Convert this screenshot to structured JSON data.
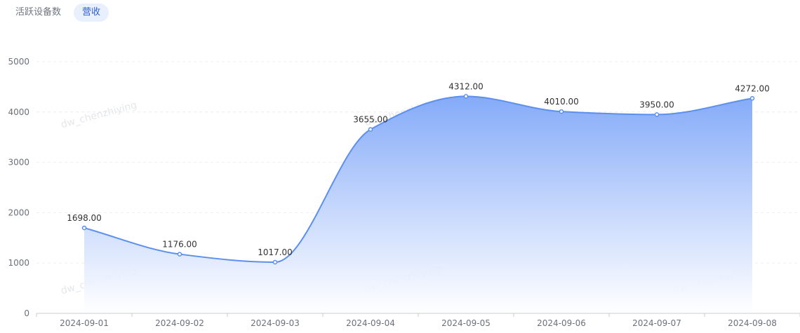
{
  "tabs": [
    {
      "label": "活跃设备数",
      "active": false
    },
    {
      "label": "营收",
      "active": true
    }
  ],
  "watermark": "dw_chenzhiying",
  "colors": {
    "line": "#5b8ff0",
    "area_top": "#7ea6f8",
    "area_bottom": "#ffffff",
    "grid": "#eceef2",
    "tab_active_bg": "#e8effd",
    "tab_active_text": "#2e5fd1"
  },
  "chart_data": {
    "type": "area",
    "x": [
      "2024-09-01",
      "2024-09-02",
      "2024-09-03",
      "2024-09-04",
      "2024-09-05",
      "2024-09-06",
      "2024-09-07",
      "2024-09-08"
    ],
    "values": [
      1698.0,
      1176.0,
      1017.0,
      3655.0,
      4312.0,
      4010.0,
      3950.0,
      4272.0
    ],
    "value_labels": [
      "1698.00",
      "1176.00",
      "1017.00",
      "3655.00",
      "4312.00",
      "4010.00",
      "3950.00",
      "4272.00"
    ],
    "ylim": [
      0,
      5000
    ],
    "yticks": [
      0,
      1000,
      2000,
      3000,
      4000,
      5000
    ],
    "smooth": true,
    "grid": true,
    "title": "",
    "xlabel": "",
    "ylabel": ""
  }
}
